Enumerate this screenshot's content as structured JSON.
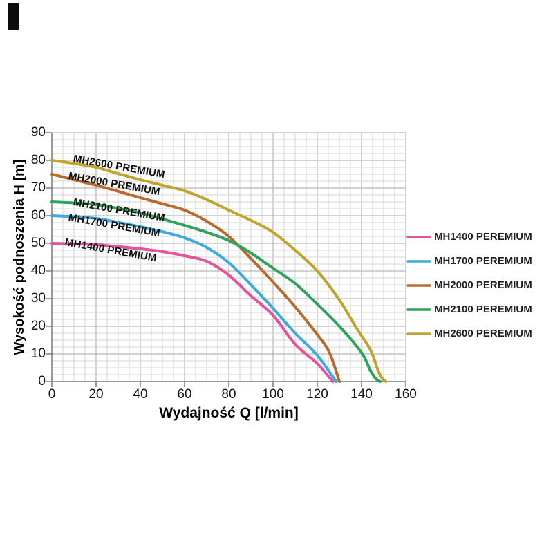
{
  "chart_data": {
    "type": "line",
    "title": "",
    "xlabel": "Wydajność Q [l/min]",
    "ylabel": "Wysokość podnoszenia H [m]",
    "xlim": [
      0,
      160
    ],
    "ylim": [
      0,
      90
    ],
    "x_ticks": [
      0,
      20,
      40,
      60,
      80,
      100,
      120,
      140,
      160
    ],
    "y_ticks": [
      0,
      10,
      20,
      30,
      40,
      50,
      60,
      70,
      80,
      90
    ],
    "x_minor_step": 5,
    "y_minor_step": 2.5,
    "grid": "major and minor, light gray",
    "legend_position": "right",
    "series": [
      {
        "key": "mh1400",
        "name_legend": "MH1400 PEREMIUM",
        "name_plot": "MH1400 PREMIUM",
        "color": "#E5539C",
        "points": [
          [
            0,
            50
          ],
          [
            10,
            49.8
          ],
          [
            20,
            49.5
          ],
          [
            30,
            48.8
          ],
          [
            40,
            48
          ],
          [
            50,
            47
          ],
          [
            60,
            45.5
          ],
          [
            70,
            43.5
          ],
          [
            80,
            38.5
          ],
          [
            90,
            31
          ],
          [
            100,
            24
          ],
          [
            110,
            13.5
          ],
          [
            120,
            6.5
          ],
          [
            127,
            0
          ]
        ]
      },
      {
        "key": "mh1700",
        "name_legend": "MH1700 PEREMIUM",
        "name_plot": "MH1700 PREMIUM",
        "color": "#3FAADC",
        "points": [
          [
            0,
            60
          ],
          [
            10,
            59.6
          ],
          [
            20,
            59
          ],
          [
            30,
            57.6
          ],
          [
            40,
            56
          ],
          [
            50,
            54.2
          ],
          [
            60,
            52
          ],
          [
            70,
            48.5
          ],
          [
            80,
            43
          ],
          [
            90,
            35
          ],
          [
            100,
            26.5
          ],
          [
            110,
            17.5
          ],
          [
            120,
            9.5
          ],
          [
            128.5,
            0
          ]
        ]
      },
      {
        "key": "mh2000",
        "name_legend": "MH2000 PEREMIUM",
        "name_plot": "MH2000 PREMIUM",
        "color": "#BC6A2B",
        "points": [
          [
            0,
            75
          ],
          [
            10,
            73
          ],
          [
            20,
            71
          ],
          [
            30,
            68.8
          ],
          [
            40,
            66.5
          ],
          [
            50,
            64.3
          ],
          [
            60,
            62
          ],
          [
            70,
            58
          ],
          [
            80,
            52.5
          ],
          [
            90,
            44.5
          ],
          [
            100,
            36
          ],
          [
            110,
            27
          ],
          [
            120,
            17
          ],
          [
            125.5,
            10.5
          ],
          [
            130,
            0
          ]
        ]
      },
      {
        "key": "mh2100",
        "name_legend": "MH2100 PEREMIUM",
        "name_plot": "MH2100 PREMIUM",
        "color": "#2CA45C",
        "points": [
          [
            0,
            65
          ],
          [
            10,
            64.6
          ],
          [
            20,
            64
          ],
          [
            30,
            62.6
          ],
          [
            40,
            61
          ],
          [
            50,
            58.8
          ],
          [
            60,
            56.5
          ],
          [
            70,
            54
          ],
          [
            80,
            51
          ],
          [
            90,
            46.5
          ],
          [
            100,
            41
          ],
          [
            110,
            35.5
          ],
          [
            120,
            28
          ],
          [
            130,
            20
          ],
          [
            140,
            10.5
          ],
          [
            144,
            4
          ],
          [
            146.5,
            1
          ],
          [
            148.5,
            0
          ]
        ]
      },
      {
        "key": "mh2600",
        "name_legend": "MH2600 PEREMIUM",
        "name_plot": "MH2600 PREMIUM",
        "color": "#C2A32D",
        "points": [
          [
            0,
            80
          ],
          [
            10,
            78.9
          ],
          [
            20,
            77.5
          ],
          [
            30,
            75.2
          ],
          [
            40,
            73
          ],
          [
            50,
            71
          ],
          [
            60,
            69
          ],
          [
            70,
            65.8
          ],
          [
            80,
            62
          ],
          [
            90,
            58.3
          ],
          [
            100,
            54
          ],
          [
            110,
            47.5
          ],
          [
            120,
            40
          ],
          [
            130,
            29.5
          ],
          [
            138,
            19
          ],
          [
            144,
            11.5
          ],
          [
            147.5,
            4
          ],
          [
            149.5,
            1
          ],
          [
            151,
            0
          ]
        ]
      }
    ]
  }
}
